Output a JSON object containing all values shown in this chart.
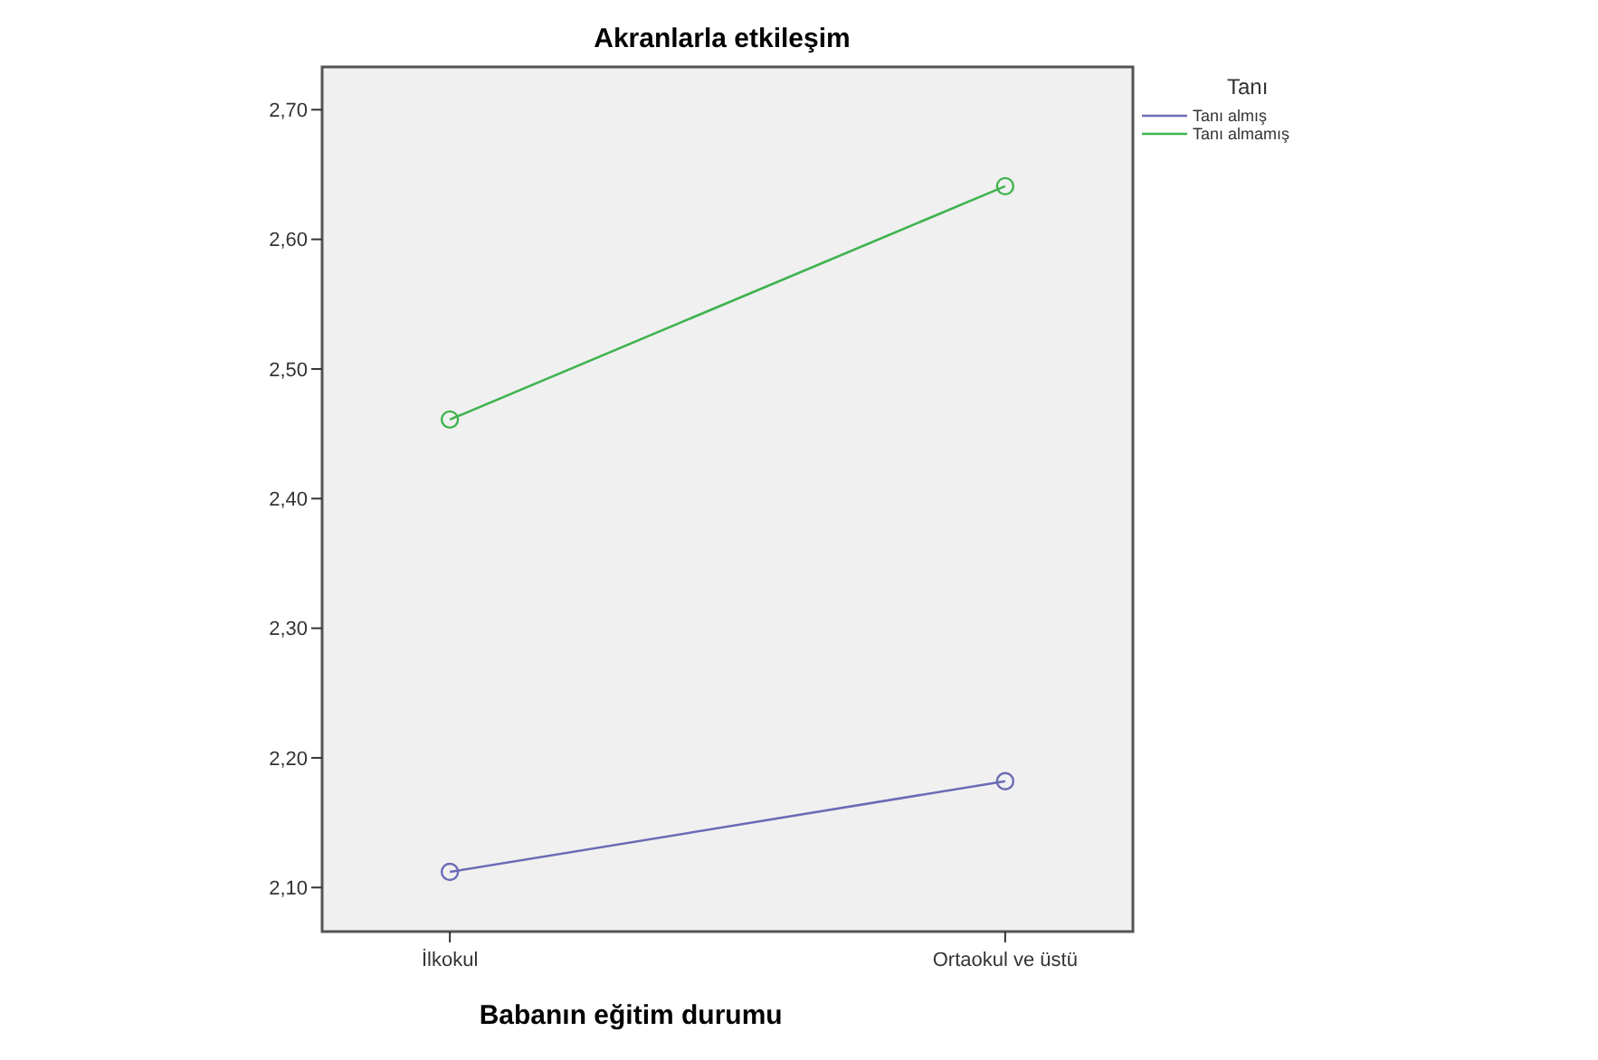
{
  "chart_data": {
    "type": "line",
    "title": "Akranlarla etkileşim",
    "xlabel": "Babanın eğitim durumu",
    "legend_title": "Tanı",
    "categories": [
      "İlkokul",
      "Ortaokul ve üstü"
    ],
    "series": [
      {
        "name": "Tanı almış",
        "color": "#6b6bb5",
        "values": [
          2.112,
          2.182
        ]
      },
      {
        "name": "Tanı almamış",
        "color": "#3fb34f",
        "values": [
          2.461,
          2.641
        ]
      }
    ],
    "ylim": [
      2.066,
      2.733
    ],
    "yticks": [
      {
        "value": 2.1,
        "label": "2,10"
      },
      {
        "value": 2.2,
        "label": "2,20"
      },
      {
        "value": 2.3,
        "label": "2,30"
      },
      {
        "value": 2.4,
        "label": "2,40"
      },
      {
        "value": 2.5,
        "label": "2,50"
      },
      {
        "value": 2.6,
        "label": "2,60"
      },
      {
        "value": 2.7,
        "label": "2,70"
      }
    ],
    "grid": false,
    "legend": "right",
    "marker": "circle",
    "line_style": "solid"
  }
}
